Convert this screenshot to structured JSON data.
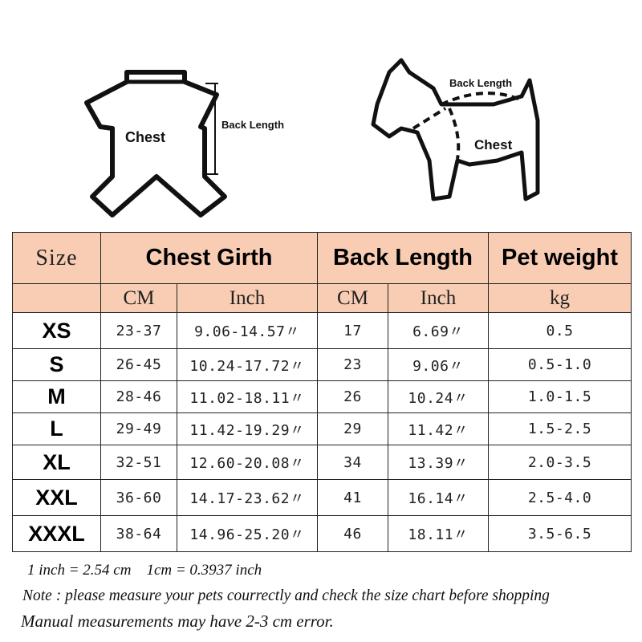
{
  "illustrations": {
    "shirt": {
      "chest_label": "Chest",
      "back_length_label": "Back Length"
    },
    "dog": {
      "chest_label": "Chest",
      "back_length_label": "Back Length"
    }
  },
  "table": {
    "header": {
      "size": "Size",
      "chest_girth": "Chest Girth",
      "back_length": "Back Length",
      "pet_weight": "Pet weight"
    },
    "units": {
      "chest_cm": "CM",
      "chest_inch": "Inch",
      "back_cm": "CM",
      "back_inch": "Inch",
      "weight": "kg"
    },
    "header_color": "#f8cdb4",
    "rows": [
      {
        "size": "XS",
        "chest_cm": "23-37",
        "chest_inch": "9.06-14.57〃",
        "back_cm": "17",
        "back_inch": "6.69〃",
        "weight": "0.5"
      },
      {
        "size": "S",
        "chest_cm": "26-45",
        "chest_inch": "10.24-17.72〃",
        "back_cm": "23",
        "back_inch": "9.06〃",
        "weight": "0.5-1.0"
      },
      {
        "size": "M",
        "chest_cm": "28-46",
        "chest_inch": "11.02-18.11〃",
        "back_cm": "26",
        "back_inch": "10.24〃",
        "weight": "1.0-1.5"
      },
      {
        "size": "L",
        "chest_cm": "29-49",
        "chest_inch": "11.42-19.29〃",
        "back_cm": "29",
        "back_inch": "11.42〃",
        "weight": "1.5-2.5"
      },
      {
        "size": "XL",
        "chest_cm": "32-51",
        "chest_inch": "12.60-20.08〃",
        "back_cm": "34",
        "back_inch": "13.39〃",
        "weight": "2.0-3.5"
      },
      {
        "size": "XXL",
        "chest_cm": "36-60",
        "chest_inch": "14.17-23.62〃",
        "back_cm": "41",
        "back_inch": "16.14〃",
        "weight": "2.5-4.0"
      },
      {
        "size": "XXXL",
        "chest_cm": "38-64",
        "chest_inch": "14.96-25.20〃",
        "back_cm": "46",
        "back_inch": "18.11〃",
        "weight": "3.5-6.5"
      }
    ]
  },
  "notes": {
    "conversion": "1 inch = 2.54 cm    1cm = 0.3937 inch",
    "note": "Note : please measure your pets courrectly and check the size chart before shopping",
    "error": "Manual measurements may have 2-3 cm error."
  }
}
